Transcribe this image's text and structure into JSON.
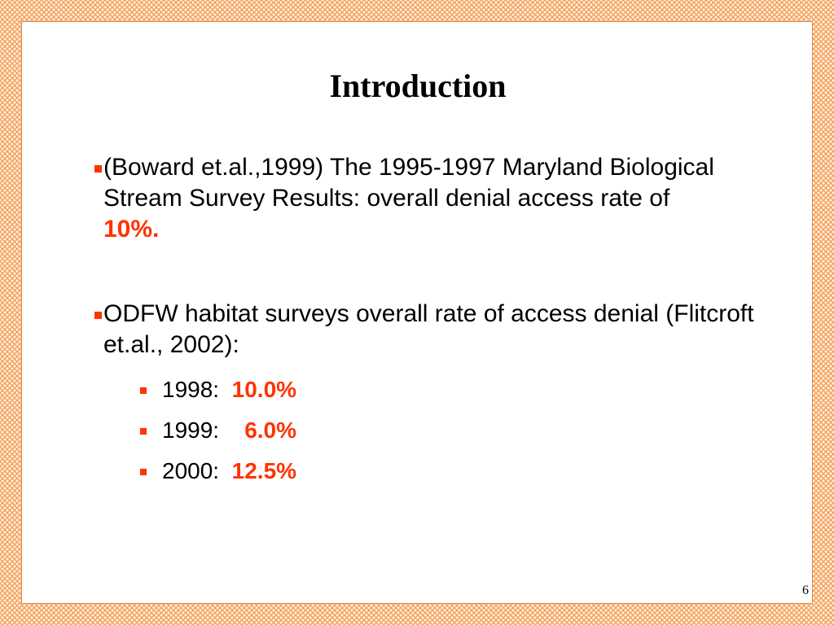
{
  "slide": {
    "title": "Introduction",
    "page_number": "6",
    "accent_color": "#ff3300",
    "border_color": "#f6a25e",
    "bullets": [
      {
        "text": "(Boward et.al.,1999) The 1995-1997 Maryland Biological Stream Survey Results: overall denial access rate of ",
        "highlight": "10%."
      },
      {
        "text": "ODFW habitat surveys overall rate of access denial (Flitcroft et.al., 2002):",
        "subitems": [
          {
            "year": "1998:",
            "gap": "  ",
            "value": "10.0%"
          },
          {
            "year": "1999:",
            "gap": "    ",
            "value": "6.0%"
          },
          {
            "year": "2000:",
            "gap": "  ",
            "value": "12.5%"
          }
        ]
      }
    ]
  }
}
